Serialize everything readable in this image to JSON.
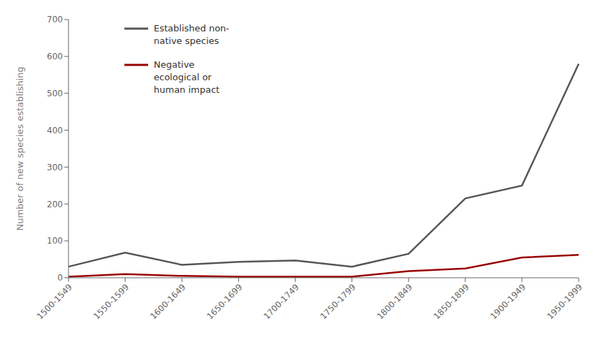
{
  "chart_data": {
    "type": "line",
    "categories": [
      "1500-1549",
      "1550-1599",
      "1600-1649",
      "1650-1699",
      "1700-1749",
      "1750-1799",
      "1800-1849",
      "1850-1899",
      "1900-1949",
      "1950-1999"
    ],
    "series": [
      {
        "name": "Established non-\nnative species",
        "color": "#555555",
        "values": [
          30,
          68,
          35,
          43,
          47,
          30,
          65,
          215,
          250,
          580
        ]
      },
      {
        "name": "Negative\necological or\nhuman impact",
        "color": "#990000",
        "values": [
          3,
          10,
          5,
          3,
          3,
          3,
          18,
          25,
          55,
          62
        ]
      }
    ],
    "ylabel": "Number of new species establishing",
    "ylim": [
      0,
      700
    ],
    "yticks": [
      0,
      100,
      200,
      300,
      400,
      500,
      600,
      700
    ],
    "grid": false,
    "legend": "upper left"
  }
}
